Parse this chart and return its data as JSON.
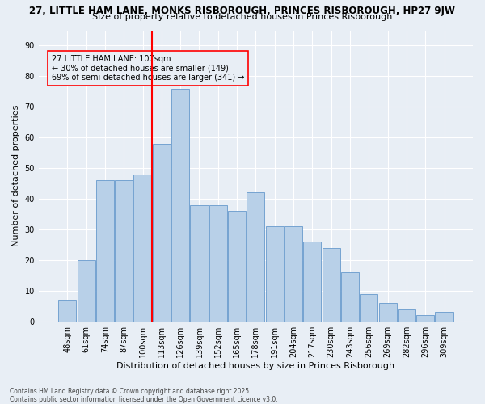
{
  "title_line1": "27, LITTLE HAM LANE, MONKS RISBOROUGH, PRINCES RISBOROUGH, HP27 9JW",
  "title_line2": "Size of property relative to detached houses in Princes Risborough",
  "xlabel": "Distribution of detached houses by size in Princes Risborough",
  "ylabel": "Number of detached properties",
  "labels": [
    "48sqm",
    "61sqm",
    "74sqm",
    "87sqm",
    "100sqm",
    "113sqm",
    "126sqm",
    "139sqm",
    "152sqm",
    "165sqm",
    "178sqm",
    "191sqm",
    "204sqm",
    "217sqm",
    "230sqm",
    "243sqm",
    "256sqm",
    "269sqm",
    "282sqm",
    "296sqm",
    "309sqm"
  ],
  "heights": [
    7,
    20,
    46,
    46,
    48,
    58,
    76,
    38,
    38,
    36,
    42,
    31,
    31,
    26,
    24,
    16,
    9,
    6,
    4,
    2,
    3
  ],
  "bar_color": "#b8d0e8",
  "bar_edge_color": "#6699cc",
  "vline_index": 5,
  "annotation_text": "27 LITTLE HAM LANE: 107sqm\n← 30% of detached houses are smaller (149)\n69% of semi-detached houses are larger (341) →",
  "ylim_max": 95,
  "yticks": [
    0,
    10,
    20,
    30,
    40,
    50,
    60,
    70,
    80,
    90
  ],
  "background_color": "#e8eef5",
  "grid_color": "#ffffff",
  "footer_text": "Contains HM Land Registry data © Crown copyright and database right 2025.\nContains public sector information licensed under the Open Government Licence v3.0.",
  "title_fontsize": 8.5,
  "subtitle_fontsize": 8,
  "ylabel_fontsize": 8,
  "xlabel_fontsize": 8,
  "tick_fontsize": 7,
  "annotation_fontsize": 7,
  "footer_fontsize": 5.5
}
